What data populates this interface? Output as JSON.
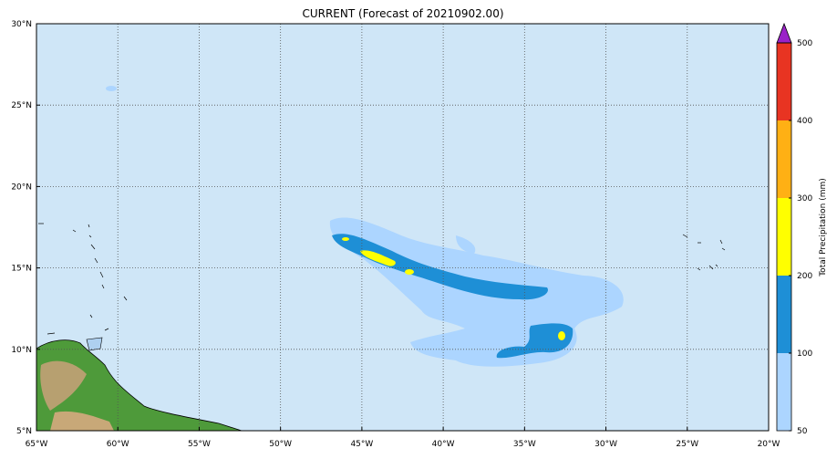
{
  "title": "CURRENT (Forecast of 20210902.00)",
  "map": {
    "lon_ticks": [
      "65°W",
      "60°W",
      "55°W",
      "50°W",
      "45°W",
      "40°W",
      "35°W",
      "30°W",
      "25°W",
      "20°W"
    ],
    "lat_ticks": [
      "5°N",
      "10°N",
      "15°N",
      "20°N",
      "25°N",
      "30°N"
    ]
  },
  "colorbar": {
    "label": "Total Precipitation (mm)",
    "levels": [
      50,
      100,
      200,
      300,
      400,
      500
    ],
    "colors": [
      "#acd5ff",
      "#1e8fd6",
      "#ffff00",
      "#ffb014",
      "#e83422"
    ],
    "extend_color": "#9a22c8"
  }
}
